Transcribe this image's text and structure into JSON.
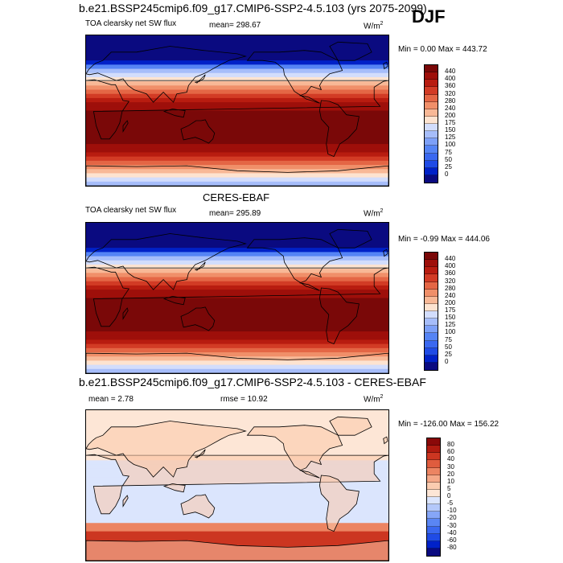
{
  "header": {
    "case_title": "b.e21.BSSP245cmip6.f09_g17.CMIP6-SSP2-4.5.103 (yrs 2075-2099)",
    "season": "DJF"
  },
  "panels": [
    {
      "subtitle": "",
      "left_label": "TOA clearsky net SW flux",
      "mean_label": "mean= 298.67",
      "units": "W/m",
      "units_sup": "2",
      "minmax": "Min =   0.00 Max = 443.72",
      "colorbar_labels": [
        "440",
        "400",
        "360",
        "320",
        "280",
        "240",
        "200",
        "175",
        "150",
        "125",
        "100",
        "75",
        "50",
        "25",
        "0"
      ]
    },
    {
      "subtitle": "CERES-EBAF",
      "left_label": "TOA clearsky net SW flux",
      "mean_label": "mean= 295.89",
      "units": "W/m",
      "units_sup": "2",
      "minmax": "Min =  -0.99 Max = 444.06",
      "colorbar_labels": [
        "440",
        "400",
        "360",
        "320",
        "280",
        "240",
        "200",
        "175",
        "150",
        "125",
        "100",
        "75",
        "50",
        "25",
        "0"
      ]
    },
    {
      "subtitle": "b.e21.BSSP245cmip6.f09_g17.CMIP6-SSP2-4.5.103 - CERES-EBAF",
      "left_label": "mean =   2.78",
      "mean_label": "rmse =  10.92",
      "units": "W/m",
      "units_sup": "2",
      "minmax": "Min = -126.00 Max = 156.22",
      "colorbar_labels": [
        "80",
        "60",
        "40",
        "30",
        "20",
        "10",
        "5",
        "0",
        "-5",
        "-10",
        "-20",
        "-30",
        "-40",
        "-60",
        "-80"
      ]
    }
  ],
  "colors": {
    "abs_scale": [
      "#0a0a80",
      "#0021c8",
      "#1f4be6",
      "#3a68f0",
      "#5584f5",
      "#7da0f8",
      "#a6bdfa",
      "#d2ddfc",
      "#fde3d0",
      "#f8b896",
      "#f08f69",
      "#e46645",
      "#d23b25",
      "#b81c10",
      "#9e0f0a",
      "#7a0808"
    ],
    "diff_scale": [
      "#0a0a80",
      "#0021c8",
      "#1f4be6",
      "#3a68f0",
      "#5a86f4",
      "#86a6f7",
      "#b4c8fa",
      "#dbe5fd",
      "#fde6d6",
      "#fbccb0",
      "#f5a888",
      "#ec8462",
      "#df5c3e",
      "#cc3621",
      "#b01b10",
      "#8a0909"
    ]
  },
  "icons": [
    "map-coastline-icon"
  ]
}
